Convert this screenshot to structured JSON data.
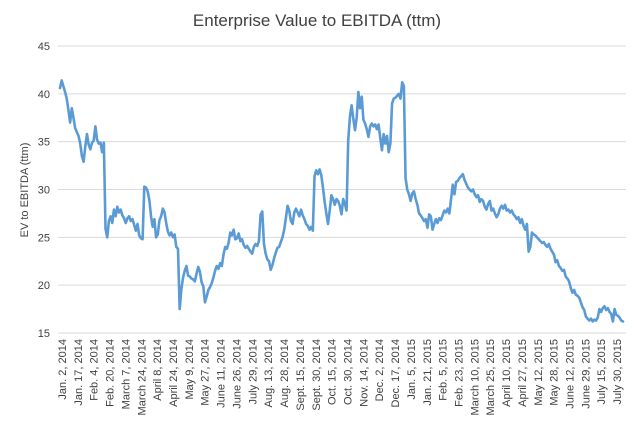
{
  "chart_data": {
    "type": "line",
    "title": "Enterprise Value to EBITDA (ttm)",
    "xlabel": "",
    "ylabel": "EV to EBITDA (ttm)",
    "ylim": [
      15,
      45
    ],
    "y_ticks": [
      15,
      20,
      25,
      30,
      35,
      40,
      45
    ],
    "grid": "horizontal",
    "legend": "none",
    "line_color": "#5B9BD5",
    "x_tick_labels": [
      "Jan. 2, 2014",
      "Jan. 17, 2014",
      "Feb. 4, 2014",
      "Feb. 20, 2014",
      "March 7, 2014",
      "March 24, 2014",
      "April 8, 2014",
      "April 24, 2014",
      "May 9, 2014",
      "May 27, 2014",
      "June 11, 2014",
      "June 26, 2014",
      "July 29, 2014",
      "Aug. 13, 2014",
      "Aug. 28, 2014",
      "Sept. 15, 2014",
      "Sept. 30, 2014",
      "Oct. 15, 2014",
      "Oct. 30, 2014",
      "Nov. 14, 2014",
      "Dec. 2, 2014",
      "Dec. 17, 2014",
      "Jan. 5, 2015",
      "Jan. 21, 2015",
      "Feb. 5, 2015",
      "Feb. 23, 2015",
      "March 10, 2015",
      "March 25, 2015",
      "April 10, 2015",
      "April 27, 2015",
      "May 12, 2015",
      "May 28, 2015",
      "June 12, 2015",
      "June 29, 2015",
      "July 15, 2015",
      "July 30, 2015"
    ],
    "series": [
      {
        "values": [
          40.6,
          41.4,
          40.8,
          40.2,
          39.5,
          38.3,
          37.0,
          38.5,
          37.5,
          36.4,
          36.0,
          35.6,
          34.8,
          33.5,
          32.9,
          34.5,
          35.8,
          34.7,
          34.2,
          34.9,
          35.1,
          36.6,
          35.2,
          34.8,
          34.9,
          33.9,
          34.9,
          25.9,
          25.0,
          26.7,
          27.2,
          26.5,
          27.9,
          27.2,
          28.2,
          27.6,
          27.9,
          27.3,
          27.0,
          26.5,
          27.0,
          27.2,
          26.7,
          26.9,
          26.3,
          25.7,
          26.4,
          25.2,
          24.9,
          24.8,
          30.3,
          30.2,
          29.8,
          28.9,
          27.2,
          26.1,
          26.9,
          25.0,
          25.3,
          26.8,
          27.2,
          28.0,
          27.6,
          26.5,
          25.6,
          25.2,
          25.5,
          25.0,
          25.3,
          24.0,
          23.8,
          17.5,
          19.6,
          20.8,
          21.5,
          22.0,
          21.0,
          20.9,
          20.7,
          20.6,
          20.4,
          21.2,
          21.9,
          21.4,
          20.3,
          19.9,
          18.2,
          18.8,
          19.5,
          19.8,
          20.2,
          20.8,
          21.5,
          22.0,
          21.7,
          22.3,
          22.0,
          23.2,
          24.0,
          23.8,
          24.4,
          25.5,
          25.2,
          25.8,
          24.8,
          24.9,
          25.4,
          24.6,
          24.8,
          24.2,
          23.9,
          24.1,
          23.8,
          23.5,
          23.3,
          24.0,
          24.3,
          24.1,
          24.6,
          27.4,
          27.7,
          24.3,
          23.3,
          22.7,
          22.5,
          21.6,
          22.1,
          22.8,
          23.4,
          23.9,
          24.0,
          24.5,
          25.0,
          25.8,
          27.0,
          28.3,
          27.8,
          26.7,
          26.4,
          27.6,
          28.0,
          27.6,
          27.2,
          27.9,
          27.3,
          26.9,
          26.4,
          26.2,
          25.8,
          26.1,
          25.7,
          31.4,
          32.0,
          31.6,
          32.1,
          31.5,
          30.2,
          28.7,
          27.5,
          26.4,
          27.8,
          29.4,
          29.0,
          28.4,
          29.0,
          28.8,
          28.3,
          27.4,
          29.0,
          28.5,
          27.8,
          35.2,
          37.6,
          38.8,
          37.4,
          36.2,
          37.5,
          40.2,
          38.5,
          39.7,
          37.3,
          36.9,
          36.3,
          35.5,
          36.6,
          36.9,
          36.6,
          36.8,
          36.3,
          36.8,
          35.4,
          34.1,
          35.8,
          34.8,
          35.6,
          33.9,
          34.8,
          39.0,
          39.5,
          39.6,
          39.8,
          40.0,
          39.5,
          41.2,
          40.8,
          31.2,
          30.0,
          29.5,
          28.8,
          29.6,
          29.8,
          29.0,
          28.4,
          27.5,
          27.3,
          27.0,
          26.7,
          26.9,
          26.0,
          27.4,
          27.2,
          25.8,
          26.4,
          26.9,
          26.5,
          27.0,
          26.8,
          27.3,
          27.8,
          27.6,
          28.0,
          27.5,
          29.0,
          30.5,
          29.5,
          30.8,
          30.9,
          31.2,
          31.4,
          31.6,
          31.0,
          30.6,
          30.2,
          30.0,
          29.8,
          30.0,
          29.5,
          29.2,
          29.4,
          28.7,
          29.0,
          28.8,
          28.2,
          27.9,
          28.5,
          28.8,
          27.8,
          28.0,
          27.5,
          27.1,
          27.4,
          28.0,
          28.3,
          28.0,
          28.4,
          27.8,
          27.9,
          27.6,
          27.8,
          27.4,
          27.2,
          26.9,
          27.1,
          26.5,
          26.9,
          26.2,
          25.8,
          26.4,
          23.5,
          24.0,
          25.5,
          25.3,
          25.2,
          25.0,
          24.8,
          24.6,
          24.4,
          24.5,
          24.2,
          24.0,
          24.3,
          23.8,
          23.5,
          23.2,
          22.4,
          22.6,
          22.0,
          21.8,
          21.5,
          21.6,
          20.9,
          20.7,
          20.4,
          19.7,
          19.2,
          19.5,
          19.0,
          18.9,
          18.7,
          18.2,
          17.7,
          17.4,
          16.7,
          16.5,
          16.3,
          16.5,
          16.2,
          16.4,
          16.3,
          16.6,
          17.5,
          17.2,
          17.6,
          17.8,
          17.4,
          17.6,
          17.2,
          17.0,
          16.2,
          17.5,
          16.9,
          16.8,
          16.6,
          16.3,
          16.2
        ]
      }
    ]
  }
}
